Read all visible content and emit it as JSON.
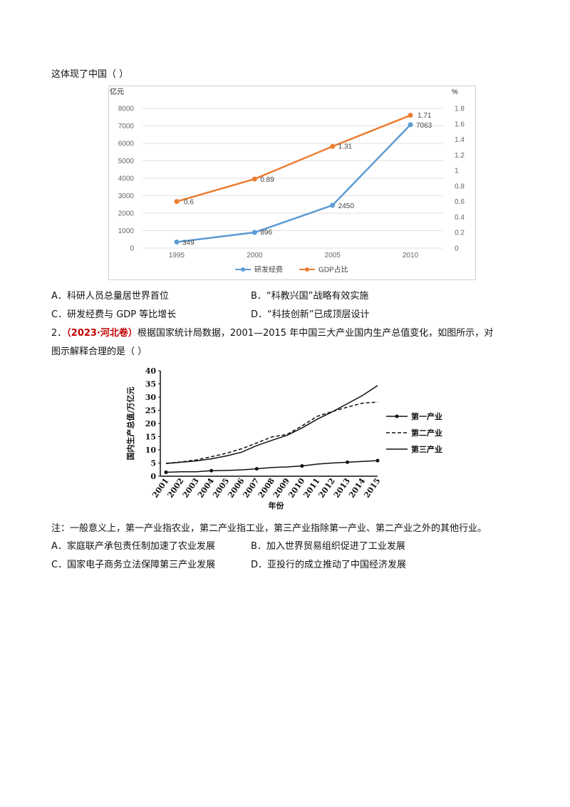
{
  "q1": {
    "stem_tail": "这体现了中国（            ）",
    "options": [
      {
        "label": "A．科研人员总量居世界首位"
      },
      {
        "label": "B．“科教兴国”战略有效实施"
      },
      {
        "label": "C．研发经费与 GDP 等比增长"
      },
      {
        "label": "D．“科技创新”已成顶层设计"
      }
    ]
  },
  "q2": {
    "number": "2．",
    "source": "（2023·河北卷）",
    "stem_line1": "根据国家统计局数据，2001—2015 年中国三大产业国内生产总值变化，如图所示，对",
    "stem_line2": "图示解释合理的是（        ）",
    "note": "注：一般意义上，第一产业指农业，第二产业指工业，第三产业指除第一产业、第二产业之外的其他行业。",
    "options": [
      {
        "label": "A．家庭联产承包责任制加速了农业发展"
      },
      {
        "label": "B．加入世界贸易组织促进了工业发展"
      },
      {
        "label": "C．国家电子商务立法保障第三产业发展"
      },
      {
        "label": "D．亚投行的成立推动了中国经济发展"
      }
    ]
  },
  "chart_data": [
    {
      "type": "line",
      "left_unit": "亿元",
      "right_unit": "%",
      "x": [
        "1995",
        "2000",
        "2005",
        "2010"
      ],
      "left_ticks": [
        "0",
        "1000",
        "2000",
        "3000",
        "4000",
        "5000",
        "6000",
        "7000",
        "8000"
      ],
      "right_ticks": [
        "0",
        "0.2",
        "0.4",
        "0.6",
        "0.8",
        "1",
        "1.2",
        "1.4",
        "1.6",
        "1.8"
      ],
      "ylim_left": [
        0,
        8000
      ],
      "ylim_right": [
        0,
        1.8
      ],
      "series": [
        {
          "name": "研发经费",
          "axis": "left",
          "color": "#5b9bd5",
          "values": [
            349,
            896,
            2450,
            7063
          ],
          "labels": [
            "349",
            "896",
            "2450",
            "7063"
          ]
        },
        {
          "name": "GDP占比",
          "axis": "right",
          "color": "#ed7d31",
          "values": [
            0.6,
            0.89,
            1.31,
            1.71
          ],
          "labels": [
            "0.6",
            "0.89",
            "1.31",
            "1.71"
          ]
        }
      ],
      "grid": true,
      "legend": "bottom"
    },
    {
      "type": "line",
      "ylabel": "国内生产总值/万亿元",
      "xlabel": "年份",
      "x": [
        "2001",
        "2002",
        "2003",
        "2004",
        "2005",
        "2006",
        "2007",
        "2008",
        "2009",
        "2010",
        "2011",
        "2012",
        "2013",
        "2014",
        "2015"
      ],
      "y_ticks": [
        "0",
        "5",
        "10",
        "15",
        "20",
        "25",
        "30",
        "35",
        "40"
      ],
      "ylim": [
        0,
        40
      ],
      "series": [
        {
          "name": "第一产业",
          "style": "solid-dots",
          "values": [
            1.5,
            1.7,
            1.7,
            2.1,
            2.2,
            2.4,
            2.8,
            3.3,
            3.5,
            3.9,
            4.6,
            5.0,
            5.3,
            5.6,
            5.9
          ]
        },
        {
          "name": "第二产业",
          "style": "dashed",
          "values": [
            4.9,
            5.4,
            6.2,
            7.4,
            8.7,
            10.4,
            12.6,
            14.9,
            15.8,
            19.1,
            22.7,
            24.5,
            26.2,
            27.7,
            28.1
          ]
        },
        {
          "name": "第三产业",
          "style": "solid",
          "values": [
            4.8,
            5.3,
            5.8,
            6.6,
            7.7,
            9.1,
            11.6,
            13.6,
            15.5,
            18.3,
            21.6,
            24.4,
            27.5,
            30.6,
            34.4
          ]
        }
      ],
      "grid": false,
      "legend": "right"
    }
  ]
}
